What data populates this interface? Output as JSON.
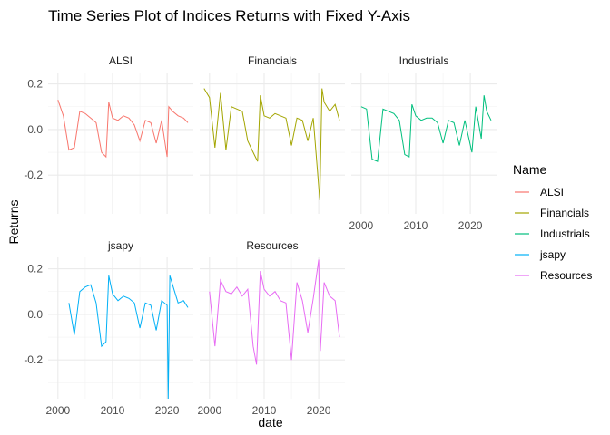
{
  "chart_data": {
    "type": "line",
    "title": "Time Series Plot of Indices Returns with Fixed Y-Axis",
    "xlabel": "date",
    "ylabel": "Returns",
    "xlim": [
      1998.2,
      2024.8
    ],
    "ylim": [
      -0.37,
      0.25
    ],
    "x_ticks": [
      2000,
      2010,
      2020
    ],
    "x_tick_labels": [
      "2000",
      "2010",
      "2020"
    ],
    "y_ticks": [
      -0.2,
      0.0,
      0.2
    ],
    "y_tick_labels": [
      "-0.2",
      "0.0",
      "0.2"
    ],
    "grid": true,
    "legend": {
      "title": "Name",
      "position": "right",
      "entries": [
        "ALSI",
        "Financials",
        "Industrials",
        "jsapy",
        "Resources"
      ]
    },
    "series": [
      {
        "name": "ALSI",
        "color": "#F8766D",
        "panel": "ALSI",
        "x": [
          2000.0,
          2001.0,
          2002.0,
          2003.0,
          2004.0,
          2005.0,
          2006.0,
          2007.0,
          2008.0,
          2008.8,
          2009.3,
          2010.0,
          2011.0,
          2012.0,
          2013.0,
          2014.0,
          2015.0,
          2016.0,
          2017.0,
          2018.0,
          2019.0,
          2020.0,
          2020.3,
          2021.0,
          2022.0,
          2023.0,
          2023.8
        ],
        "y": [
          0.13,
          0.06,
          -0.09,
          -0.08,
          0.08,
          0.07,
          0.05,
          0.03,
          -0.1,
          -0.12,
          0.12,
          0.05,
          0.04,
          0.06,
          0.05,
          0.02,
          -0.05,
          0.04,
          0.03,
          -0.06,
          0.04,
          -0.12,
          0.1,
          0.08,
          0.06,
          0.05,
          0.03
        ]
      },
      {
        "name": "Financials",
        "color": "#A3A500",
        "panel": "Financials",
        "x": [
          1999.0,
          2000.0,
          2001.0,
          2002.0,
          2003.0,
          2004.0,
          2005.0,
          2006.0,
          2007.0,
          2008.0,
          2008.8,
          2009.3,
          2010.0,
          2011.0,
          2012.0,
          2013.0,
          2014.0,
          2015.0,
          2016.0,
          2017.0,
          2018.0,
          2019.0,
          2020.2,
          2020.6,
          2021.0,
          2022.0,
          2023.0,
          2023.8
        ],
        "y": [
          0.18,
          0.14,
          -0.08,
          0.16,
          -0.09,
          0.1,
          0.09,
          0.08,
          -0.05,
          -0.1,
          -0.14,
          0.15,
          0.06,
          0.05,
          0.07,
          0.06,
          0.05,
          -0.07,
          0.05,
          0.04,
          -0.05,
          0.05,
          -0.31,
          0.18,
          0.12,
          0.08,
          0.11,
          0.04
        ]
      },
      {
        "name": "Industrials",
        "color": "#00BF7D",
        "panel": "Industrials",
        "x": [
          2000.0,
          2001.0,
          2002.0,
          2003.0,
          2004.0,
          2005.0,
          2006.0,
          2007.0,
          2008.0,
          2008.8,
          2009.3,
          2010.0,
          2011.0,
          2012.0,
          2013.0,
          2014.0,
          2015.0,
          2016.0,
          2017.0,
          2018.0,
          2019.0,
          2020.3,
          2021.0,
          2022.0,
          2022.5,
          2023.0,
          2023.8
        ],
        "y": [
          0.1,
          0.09,
          -0.13,
          -0.14,
          0.09,
          0.08,
          0.07,
          0.04,
          -0.11,
          -0.12,
          0.11,
          0.06,
          0.04,
          0.05,
          0.05,
          0.03,
          -0.06,
          0.04,
          0.03,
          -0.07,
          0.04,
          -0.1,
          0.1,
          -0.04,
          0.15,
          0.08,
          0.04
        ]
      },
      {
        "name": "jsapy",
        "color": "#00B0F6",
        "panel": "jsapy",
        "x": [
          2002.0,
          2003.0,
          2004.0,
          2005.0,
          2006.0,
          2007.0,
          2008.0,
          2008.8,
          2009.3,
          2010.0,
          2011.0,
          2012.0,
          2013.0,
          2014.0,
          2015.0,
          2016.0,
          2017.0,
          2018.0,
          2019.0,
          2020.0,
          2020.2,
          2020.5,
          2021.0,
          2022.0,
          2023.0,
          2023.8
        ],
        "y": [
          0.05,
          -0.09,
          0.1,
          0.12,
          0.13,
          0.05,
          -0.14,
          -0.12,
          0.17,
          0.09,
          0.06,
          0.08,
          0.07,
          0.05,
          -0.06,
          0.05,
          0.04,
          -0.07,
          0.06,
          0.04,
          -0.37,
          0.17,
          0.13,
          0.05,
          0.06,
          0.03
        ]
      },
      {
        "name": "Resources",
        "color": "#E76BF3",
        "panel": "Resources",
        "x": [
          2000.0,
          2001.0,
          2002.0,
          2003.0,
          2004.0,
          2005.0,
          2006.0,
          2007.0,
          2008.0,
          2008.6,
          2009.3,
          2010.0,
          2011.0,
          2012.0,
          2013.0,
          2014.0,
          2015.0,
          2016.0,
          2017.0,
          2018.0,
          2019.0,
          2020.0,
          2020.3,
          2021.0,
          2022.0,
          2023.0,
          2023.8
        ],
        "y": [
          0.1,
          -0.14,
          0.15,
          0.1,
          0.09,
          0.12,
          0.08,
          0.11,
          -0.14,
          -0.22,
          0.19,
          0.11,
          0.08,
          0.1,
          0.06,
          0.05,
          -0.2,
          0.14,
          0.06,
          -0.08,
          0.07,
          0.24,
          -0.16,
          0.14,
          0.08,
          0.06,
          -0.1
        ]
      }
    ]
  }
}
